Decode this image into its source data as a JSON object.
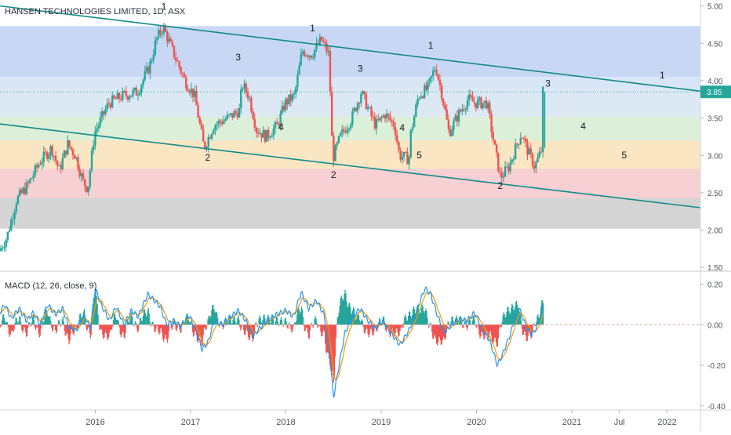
{
  "title": "HANSEN TECHNOLOGIES LIMITED, 1D, ASX",
  "chart_data": [
    {
      "type": "candlestick",
      "title": "HANSEN TECHNOLOGIES LIMITED, 1D, ASX",
      "x_range": [
        2015.0,
        2022.35
      ],
      "ylim": [
        1.45,
        5.08
      ],
      "y_ticks": [
        "1.50",
        "2.00",
        "2.50",
        "3.00",
        "3.50",
        "4.00",
        "4.50",
        "5.00"
      ],
      "x_ticks": [
        {
          "label": "2016",
          "x": 2016.0
        },
        {
          "label": "2017",
          "x": 2017.0
        },
        {
          "label": "2018",
          "x": 2018.0
        },
        {
          "label": "2019",
          "x": 2019.0
        },
        {
          "label": "2020",
          "x": 2020.0
        },
        {
          "label": "2021",
          "x": 2021.0
        },
        {
          "label": "Jul",
          "x": 2021.5
        },
        {
          "label": "2022",
          "x": 2022.0
        }
      ],
      "last_price": "3.85",
      "last_price_value": 3.85,
      "price_path": [
        [
          2015.0,
          1.72
        ],
        [
          2015.08,
          1.9
        ],
        [
          2015.18,
          2.4
        ],
        [
          2015.3,
          2.6
        ],
        [
          2015.42,
          2.9
        ],
        [
          2015.55,
          3.1
        ],
        [
          2015.63,
          2.8
        ],
        [
          2015.72,
          3.15
        ],
        [
          2015.8,
          3.0
        ],
        [
          2015.88,
          2.65
        ],
        [
          2015.93,
          2.55
        ],
        [
          2016.0,
          3.3
        ],
        [
          2016.15,
          3.7
        ],
        [
          2016.3,
          3.8
        ],
        [
          2016.45,
          3.85
        ],
        [
          2016.58,
          4.2
        ],
        [
          2016.65,
          4.55
        ],
        [
          2016.72,
          4.72
        ],
        [
          2016.82,
          4.4
        ],
        [
          2016.95,
          4.0
        ],
        [
          2017.05,
          3.8
        ],
        [
          2017.15,
          3.1
        ],
        [
          2017.25,
          3.4
        ],
        [
          2017.4,
          3.5
        ],
        [
          2017.52,
          3.6
        ],
        [
          2017.55,
          3.95
        ],
        [
          2017.62,
          3.8
        ],
        [
          2017.7,
          3.35
        ],
        [
          2017.8,
          3.25
        ],
        [
          2017.92,
          3.4
        ],
        [
          2018.0,
          3.7
        ],
        [
          2018.1,
          3.8
        ],
        [
          2018.18,
          4.4
        ],
        [
          2018.28,
          4.35
        ],
        [
          2018.38,
          4.55
        ],
        [
          2018.46,
          4.35
        ],
        [
          2018.5,
          2.95
        ],
        [
          2018.58,
          3.25
        ],
        [
          2018.7,
          3.5
        ],
        [
          2018.8,
          3.85
        ],
        [
          2018.88,
          3.6
        ],
        [
          2018.95,
          3.4
        ],
        [
          2019.05,
          3.55
        ],
        [
          2019.15,
          3.4
        ],
        [
          2019.2,
          3.0
        ],
        [
          2019.3,
          2.95
        ],
        [
          2019.32,
          3.3
        ],
        [
          2019.4,
          3.8
        ],
        [
          2019.5,
          3.9
        ],
        [
          2019.58,
          4.2
        ],
        [
          2019.65,
          3.8
        ],
        [
          2019.72,
          3.3
        ],
        [
          2019.82,
          3.55
        ],
        [
          2019.92,
          3.75
        ],
        [
          2020.0,
          3.7
        ],
        [
          2020.12,
          3.7
        ],
        [
          2020.2,
          3.1
        ],
        [
          2020.26,
          2.7
        ],
        [
          2020.35,
          2.85
        ],
        [
          2020.42,
          3.1
        ],
        [
          2020.48,
          3.3
        ],
        [
          2020.55,
          3.05
        ],
        [
          2020.62,
          2.85
        ],
        [
          2020.7,
          3.1
        ],
        [
          2020.7,
          3.85
        ]
      ],
      "candle_color_up": "#26a69a",
      "candle_color_down": "#ef5350",
      "zones": [
        {
          "from": 4.05,
          "to": 4.73,
          "color": "#c8d8f4"
        },
        {
          "from": 3.88,
          "to": 4.05,
          "color": "#d8e6f6"
        },
        {
          "from": 3.52,
          "to": 3.88,
          "color": "#dde8f5"
        },
        {
          "from": 3.2,
          "to": 3.52,
          "color": "#dcefd8"
        },
        {
          "from": 2.82,
          "to": 3.2,
          "color": "#fbe6c4"
        },
        {
          "from": 2.43,
          "to": 2.82,
          "color": "#f6d0d2"
        },
        {
          "from": 2.02,
          "to": 2.43,
          "color": "#d4d4d4"
        }
      ],
      "zone_x_range": [
        2015.0,
        2022.35
      ],
      "trend_lines": [
        {
          "name": "",
          "points": [
            [
              2015.0,
              5.0
            ],
            [
              2022.35,
              3.86
            ]
          ],
          "color": "#138a8a"
        },
        {
          "name": "",
          "points": [
            [
              2015.0,
              3.42
            ],
            [
              2022.35,
              2.3
            ]
          ],
          "color": "#138a8a"
        }
      ],
      "wave_labels": [
        {
          "text": "1",
          "x": 2016.72,
          "y": 4.95
        },
        {
          "text": "3",
          "x": 2017.5,
          "y": 4.27
        },
        {
          "text": "2",
          "x": 2017.18,
          "y": 2.93
        },
        {
          "text": "4",
          "x": 2017.95,
          "y": 3.34
        },
        {
          "text": "1",
          "x": 2018.28,
          "y": 4.66
        },
        {
          "text": "3",
          "x": 2018.78,
          "y": 4.12
        },
        {
          "text": "2",
          "x": 2018.5,
          "y": 2.7
        },
        {
          "text": "4",
          "x": 2019.22,
          "y": 3.33
        },
        {
          "text": "5",
          "x": 2019.4,
          "y": 2.96
        },
        {
          "text": "1",
          "x": 2019.52,
          "y": 4.43
        },
        {
          "text": "2",
          "x": 2020.25,
          "y": 2.55
        },
        {
          "text": "3",
          "x": 2020.75,
          "y": 3.92
        },
        {
          "text": "4",
          "x": 2021.12,
          "y": 3.35
        },
        {
          "text": "5",
          "x": 2021.55,
          "y": 2.96
        },
        {
          "text": "1",
          "x": 2021.95,
          "y": 4.03
        }
      ]
    },
    {
      "type": "line",
      "title": "MACD (12, 26, close, 9)",
      "x_range": [
        2015.0,
        2022.35
      ],
      "ylim": [
        -0.42,
        0.26
      ],
      "y_ticks": [
        "0.20",
        "0.00",
        "-0.20",
        "-0.40"
      ],
      "macd_path": [
        [
          2015.0,
          0.06
        ],
        [
          2015.05,
          0.1
        ],
        [
          2015.12,
          0.03
        ],
        [
          2015.2,
          0.08
        ],
        [
          2015.28,
          0.02
        ],
        [
          2015.35,
          0.06
        ],
        [
          2015.42,
          0.0
        ],
        [
          2015.5,
          0.1
        ],
        [
          2015.58,
          0.05
        ],
        [
          2015.66,
          0.08
        ],
        [
          2015.72,
          -0.01
        ],
        [
          2015.8,
          -0.03
        ],
        [
          2015.88,
          0.05
        ],
        [
          2015.95,
          -0.02
        ],
        [
          2016.0,
          0.18
        ],
        [
          2016.06,
          0.1
        ],
        [
          2016.15,
          0.02
        ],
        [
          2016.22,
          0.09
        ],
        [
          2016.3,
          0.0
        ],
        [
          2016.38,
          0.07
        ],
        [
          2016.45,
          0.04
        ],
        [
          2016.55,
          0.15
        ],
        [
          2016.62,
          0.12
        ],
        [
          2016.68,
          0.09
        ],
        [
          2016.75,
          0.0
        ],
        [
          2016.82,
          0.02
        ],
        [
          2016.9,
          -0.01
        ],
        [
          2016.98,
          0.05
        ],
        [
          2017.05,
          -0.02
        ],
        [
          2017.12,
          -0.12
        ],
        [
          2017.18,
          -0.09
        ],
        [
          2017.25,
          0.02
        ],
        [
          2017.33,
          0.0
        ],
        [
          2017.42,
          0.04
        ],
        [
          2017.5,
          0.07
        ],
        [
          2017.58,
          0.02
        ],
        [
          2017.65,
          -0.06
        ],
        [
          2017.72,
          -0.02
        ],
        [
          2017.8,
          0.02
        ],
        [
          2017.9,
          0.05
        ],
        [
          2018.0,
          0.07
        ],
        [
          2018.08,
          0.04
        ],
        [
          2018.16,
          0.16
        ],
        [
          2018.24,
          0.08
        ],
        [
          2018.32,
          0.12
        ],
        [
          2018.4,
          0.05
        ],
        [
          2018.46,
          -0.15
        ],
        [
          2018.5,
          -0.36
        ],
        [
          2018.55,
          -0.22
        ],
        [
          2018.62,
          -0.04
        ],
        [
          2018.7,
          0.04
        ],
        [
          2018.78,
          0.08
        ],
        [
          2018.86,
          0.02
        ],
        [
          2018.94,
          -0.02
        ],
        [
          2019.02,
          0.02
        ],
        [
          2019.1,
          -0.04
        ],
        [
          2019.2,
          -0.1
        ],
        [
          2019.3,
          -0.02
        ],
        [
          2019.38,
          0.08
        ],
        [
          2019.46,
          0.18
        ],
        [
          2019.52,
          0.15
        ],
        [
          2019.58,
          0.06
        ],
        [
          2019.66,
          -0.04
        ],
        [
          2019.74,
          0.0
        ],
        [
          2019.82,
          0.03
        ],
        [
          2019.9,
          0.02
        ],
        [
          2019.98,
          0.06
        ],
        [
          2020.06,
          -0.02
        ],
        [
          2020.14,
          -0.08
        ],
        [
          2020.22,
          -0.2
        ],
        [
          2020.28,
          -0.14
        ],
        [
          2020.36,
          -0.04
        ],
        [
          2020.44,
          0.09
        ],
        [
          2020.52,
          -0.01
        ],
        [
          2020.58,
          -0.05
        ],
        [
          2020.65,
          0.0
        ],
        [
          2020.7,
          0.11
        ]
      ],
      "macd_color": "#2196f3",
      "signal_color": "#ff9800",
      "hist_up_color": "#26a69a",
      "hist_down_color": "#ef5350"
    }
  ]
}
